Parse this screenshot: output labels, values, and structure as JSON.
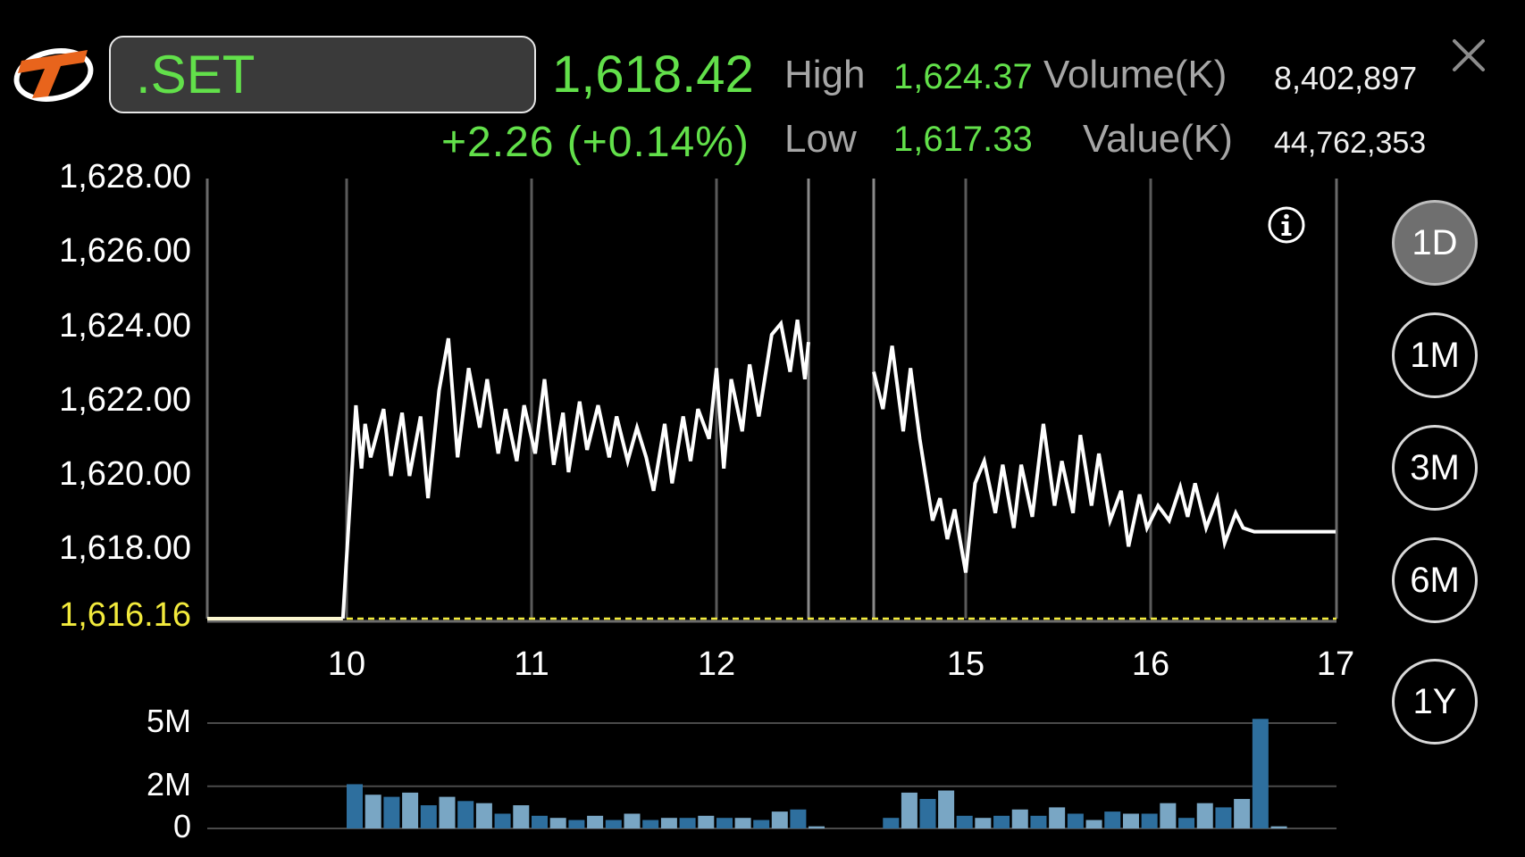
{
  "header": {
    "symbol": ".SET",
    "last_price": "1,618.42",
    "change": "+2.26  (+0.14%)",
    "high_label": "High",
    "high_value": "1,624.37",
    "low_label": "Low",
    "low_value": "1,617.33",
    "volume_label": "Volume(K)",
    "volume_value": "8,402,897",
    "value_label": "Value(K)",
    "value_value": "44,762,353"
  },
  "icons": {
    "logo": "brand-logo-icon",
    "close": "close-icon",
    "info": "info-icon"
  },
  "periods": [
    {
      "label": "1D",
      "active": true
    },
    {
      "label": "1M",
      "active": false
    },
    {
      "label": "3M",
      "active": false
    },
    {
      "label": "6M",
      "active": false
    },
    {
      "label": "1Y",
      "active": false
    }
  ],
  "colors": {
    "up": "#62e04a",
    "prev_close": "#f2ea3c",
    "line": "#ffffff",
    "volume_bar": "#2e6f9e",
    "volume_bar_light": "#79a6c4",
    "background": "#000000"
  },
  "chart_data": [
    {
      "type": "line",
      "title": "",
      "y_tick_labels": [
        "1,628.00",
        "1,626.00",
        "1,624.00",
        "1,622.00",
        "1,620.00",
        "1,618.00"
      ],
      "y_ticks": [
        1628,
        1626,
        1624,
        1622,
        1620,
        1618
      ],
      "prev_close_label": "1,616.16",
      "prev_close": 1616.16,
      "ylim": [
        1616.16,
        1628
      ],
      "x_tick_labels": [
        "10",
        "11",
        "12",
        "15",
        "16",
        "17"
      ],
      "x_ticks": [
        10,
        11,
        12,
        15,
        16,
        17
      ],
      "xlim": [
        9.25,
        17
      ],
      "session_break": [
        12.5,
        14.5
      ],
      "grid": "vertical lines at hours",
      "series": [
        {
          "values": [
            [
              9.25,
              1616.16
            ],
            [
              9.98,
              1616.16
            ],
            [
              10.05,
              1621.9
            ],
            [
              10.08,
              1620.2
            ],
            [
              10.1,
              1621.4
            ],
            [
              10.13,
              1620.5
            ],
            [
              10.2,
              1621.8
            ],
            [
              10.24,
              1620.0
            ],
            [
              10.3,
              1621.7
            ],
            [
              10.34,
              1620.0
            ],
            [
              10.4,
              1621.6
            ],
            [
              10.44,
              1619.4
            ],
            [
              10.5,
              1622.3
            ],
            [
              10.55,
              1623.7
            ],
            [
              10.6,
              1620.5
            ],
            [
              10.66,
              1622.9
            ],
            [
              10.72,
              1621.3
            ],
            [
              10.76,
              1622.6
            ],
            [
              10.82,
              1620.6
            ],
            [
              10.86,
              1621.8
            ],
            [
              10.92,
              1620.4
            ],
            [
              10.96,
              1621.9
            ],
            [
              11.02,
              1620.6
            ],
            [
              11.07,
              1622.6
            ],
            [
              11.12,
              1620.3
            ],
            [
              11.17,
              1621.7
            ],
            [
              11.2,
              1620.1
            ],
            [
              11.26,
              1622.0
            ],
            [
              11.3,
              1620.7
            ],
            [
              11.36,
              1621.9
            ],
            [
              11.42,
              1620.5
            ],
            [
              11.46,
              1621.6
            ],
            [
              11.52,
              1620.4
            ],
            [
              11.57,
              1621.3
            ],
            [
              11.62,
              1620.5
            ],
            [
              11.66,
              1619.6
            ],
            [
              11.72,
              1621.4
            ],
            [
              11.76,
              1619.8
            ],
            [
              11.82,
              1621.6
            ],
            [
              11.86,
              1620.4
            ],
            [
              11.9,
              1621.8
            ],
            [
              11.96,
              1621.0
            ],
            [
              12.0,
              1622.9
            ],
            [
              12.04,
              1620.2
            ],
            [
              12.08,
              1622.6
            ],
            [
              12.14,
              1621.2
            ],
            [
              12.18,
              1623.0
            ],
            [
              12.23,
              1621.6
            ],
            [
              12.3,
              1623.8
            ],
            [
              12.35,
              1624.1
            ],
            [
              12.4,
              1622.8
            ],
            [
              12.44,
              1624.2
            ],
            [
              12.48,
              1622.6
            ],
            [
              12.5,
              1623.6
            ]
          ],
          "values_afternoon": [
            [
              14.5,
              1622.8
            ],
            [
              14.55,
              1621.8
            ],
            [
              14.6,
              1623.5
            ],
            [
              14.66,
              1621.2
            ],
            [
              14.7,
              1622.9
            ],
            [
              14.75,
              1621.0
            ],
            [
              14.82,
              1618.8
            ],
            [
              14.86,
              1619.4
            ],
            [
              14.9,
              1618.3
            ],
            [
              14.94,
              1619.1
            ],
            [
              15.0,
              1617.4
            ],
            [
              15.05,
              1619.8
            ],
            [
              15.1,
              1620.4
            ],
            [
              15.16,
              1619.0
            ],
            [
              15.2,
              1620.3
            ],
            [
              15.26,
              1618.6
            ],
            [
              15.3,
              1620.3
            ],
            [
              15.36,
              1618.9
            ],
            [
              15.42,
              1621.4
            ],
            [
              15.48,
              1619.2
            ],
            [
              15.52,
              1620.4
            ],
            [
              15.58,
              1619.0
            ],
            [
              15.62,
              1621.1
            ],
            [
              15.68,
              1619.2
            ],
            [
              15.72,
              1620.6
            ],
            [
              15.78,
              1618.8
            ],
            [
              15.84,
              1619.6
            ],
            [
              15.88,
              1618.1
            ],
            [
              15.94,
              1619.5
            ],
            [
              15.98,
              1618.6
            ],
            [
              16.04,
              1619.2
            ],
            [
              16.1,
              1618.8
            ],
            [
              16.16,
              1619.7
            ],
            [
              16.2,
              1618.9
            ],
            [
              16.24,
              1619.8
            ],
            [
              16.3,
              1618.6
            ],
            [
              16.36,
              1619.4
            ],
            [
              16.4,
              1618.2
            ],
            [
              16.46,
              1619.0
            ],
            [
              16.5,
              1618.6
            ],
            [
              16.56,
              1618.5
            ],
            [
              17.0,
              1618.5
            ]
          ]
        }
      ]
    },
    {
      "type": "bar",
      "title": "",
      "y_tick_labels": [
        "5M",
        "2M",
        "0"
      ],
      "y_ticks": [
        5,
        2,
        0
      ],
      "ylim": [
        0,
        5
      ],
      "bars": [
        [
          10.0,
          2.1
        ],
        [
          10.1,
          1.6
        ],
        [
          10.2,
          1.5
        ],
        [
          10.3,
          1.7
        ],
        [
          10.4,
          1.1
        ],
        [
          10.5,
          1.5
        ],
        [
          10.6,
          1.3
        ],
        [
          10.7,
          1.2
        ],
        [
          10.8,
          0.7
        ],
        [
          10.9,
          1.1
        ],
        [
          11.0,
          0.6
        ],
        [
          11.1,
          0.5
        ],
        [
          11.2,
          0.4
        ],
        [
          11.3,
          0.6
        ],
        [
          11.4,
          0.4
        ],
        [
          11.5,
          0.7
        ],
        [
          11.6,
          0.4
        ],
        [
          11.7,
          0.5
        ],
        [
          11.8,
          0.5
        ],
        [
          11.9,
          0.6
        ],
        [
          12.0,
          0.5
        ],
        [
          12.1,
          0.5
        ],
        [
          12.2,
          0.4
        ],
        [
          12.3,
          0.8
        ],
        [
          12.4,
          0.9
        ],
        [
          12.5,
          0.1
        ],
        [
          14.55,
          0.5
        ],
        [
          14.65,
          1.7
        ],
        [
          14.75,
          1.4
        ],
        [
          14.85,
          1.8
        ],
        [
          14.95,
          0.6
        ],
        [
          15.05,
          0.5
        ],
        [
          15.15,
          0.6
        ],
        [
          15.25,
          0.9
        ],
        [
          15.35,
          0.6
        ],
        [
          15.45,
          1.0
        ],
        [
          15.55,
          0.7
        ],
        [
          15.65,
          0.4
        ],
        [
          15.75,
          0.8
        ],
        [
          15.85,
          0.7
        ],
        [
          15.95,
          0.7
        ],
        [
          16.05,
          1.2
        ],
        [
          16.15,
          0.5
        ],
        [
          16.25,
          1.2
        ],
        [
          16.35,
          1.0
        ],
        [
          16.45,
          1.4
        ],
        [
          16.55,
          5.2
        ],
        [
          16.65,
          0.1
        ]
      ]
    }
  ]
}
